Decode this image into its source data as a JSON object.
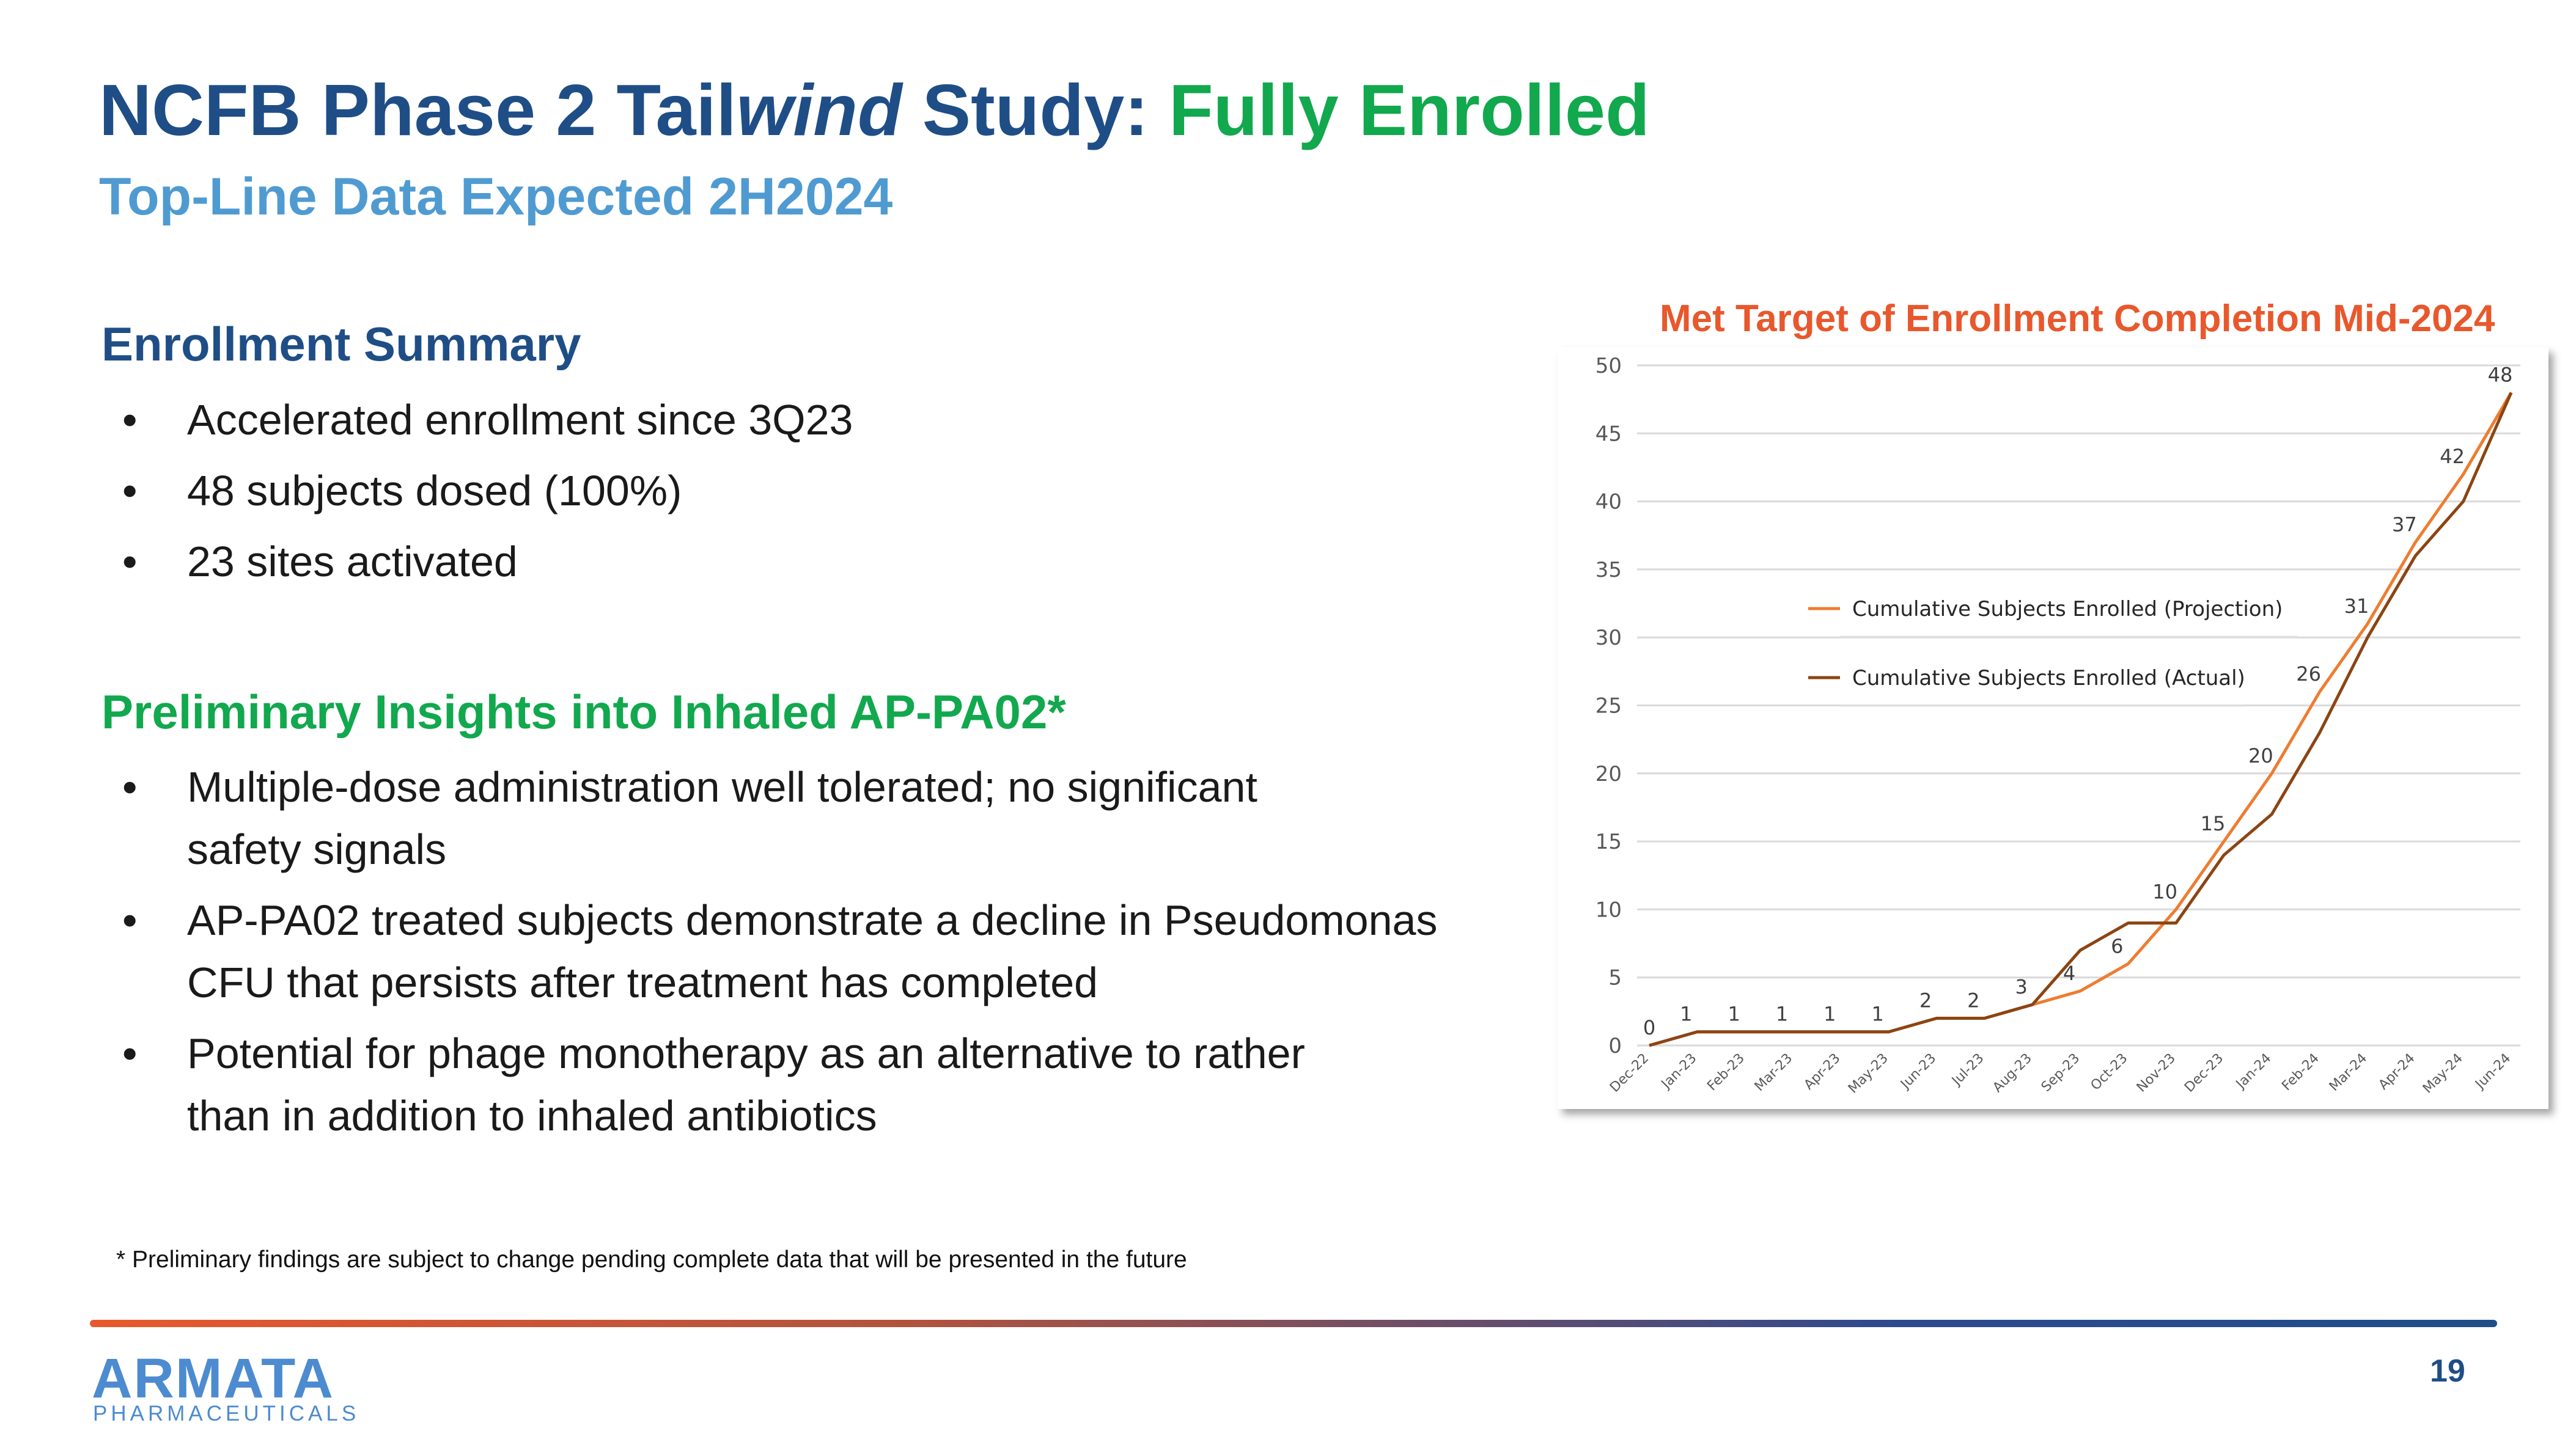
{
  "slide": {
    "title_part1": "NCFB Phase 2 Tail",
    "title_part2": "wind",
    "title_part3": " Study: ",
    "title_part4": "Fully Enrolled",
    "subtitle": "Top-Line Data Expected 2H2024",
    "page_number": "19"
  },
  "enrollment": {
    "heading": "Enrollment Summary",
    "items": [
      "Accelerated enrollment since 3Q23",
      "48 subjects dosed (100%)",
      "23 sites activated"
    ]
  },
  "insights": {
    "heading": "Preliminary Insights into Inhaled AP-PA02*",
    "items": [
      "Multiple-dose administration well tolerated; no significant safety signals",
      "AP-PA02 treated subjects demonstrate a decline in Pseudomonas CFU that persists after treatment has completed",
      "Potential for phage monotherapy as an alternative to rather than in addition to inhaled antibiotics"
    ]
  },
  "footnote": "* Preliminary findings are subject to change pending complete data that will be presented in the future",
  "logo": {
    "word": "ARMATA",
    "sub": "PHARMACEUTICALS"
  },
  "colors": {
    "title_blue": "#1f4e87",
    "accent_green": "#12a84e",
    "subtitle_blue": "#4f9bd1",
    "chart_title_orange": "#e8582c",
    "projection_line": "#ed7d31",
    "actual_line": "#8b4513"
  },
  "chart_data": {
    "type": "line",
    "title": "Met Target of Enrollment Completion Mid-2024",
    "x": [
      "Dec-22",
      "Jan-23",
      "Feb-23",
      "Mar-23",
      "Apr-23",
      "May-23",
      "Jun-23",
      "Jul-23",
      "Aug-23",
      "Sep-23",
      "Oct-23",
      "Nov-23",
      "Dec-23",
      "Jan-24",
      "Feb-24",
      "Mar-24",
      "Apr-24",
      "May-24",
      "Jun-24"
    ],
    "ylim": [
      0,
      50
    ],
    "yticks": [
      0,
      5,
      10,
      15,
      20,
      25,
      30,
      35,
      40,
      45,
      50
    ],
    "grid": true,
    "legend_position": "center-left",
    "series": [
      {
        "name": "Cumulative Subjects Enrolled (Projection)",
        "color": "#ed7d31",
        "values": [
          0,
          1,
          1,
          1,
          1,
          1,
          2,
          2,
          3,
          4,
          6,
          10,
          15,
          20,
          26,
          31,
          37,
          42,
          48
        ],
        "labels": [
          "0",
          "1",
          "1",
          "1",
          "1",
          "1",
          "2",
          "2",
          "3",
          "4",
          "6",
          "10",
          "15",
          "20",
          "26",
          "31",
          "37",
          "42",
          "48"
        ]
      },
      {
        "name": "Cumulative Subjects Enrolled (Actual)",
        "color": "#8b4513",
        "values": [
          0,
          1,
          1,
          1,
          1,
          1,
          2,
          2,
          3,
          7,
          9,
          9,
          14,
          17,
          23,
          30,
          36,
          40,
          48
        ]
      }
    ]
  }
}
